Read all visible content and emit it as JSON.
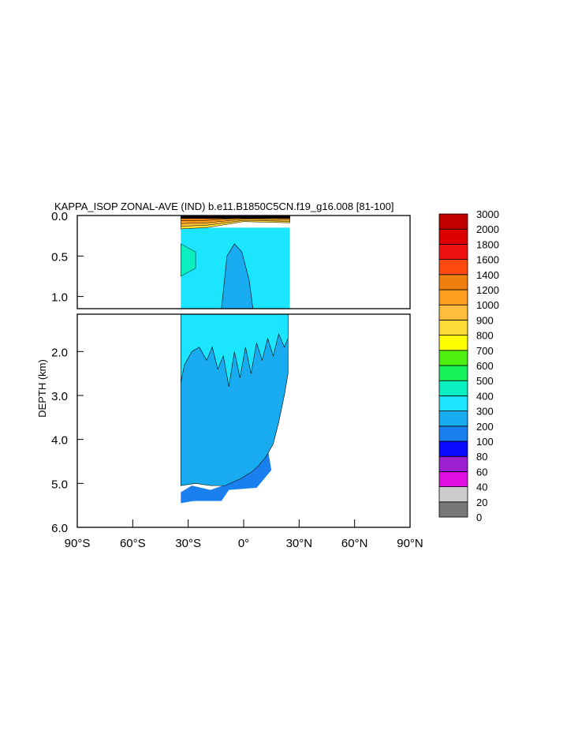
{
  "chart_data": {
    "type": "heatmap",
    "title": "KAPPA_ISOP ZONAL-AVE (IND) b.e11.B1850C5CN.f19_g16.008 [81-100]",
    "ylabel": "DEPTH (km)",
    "xlabel": "",
    "x_ticks": [
      "90°S",
      "60°S",
      "30°S",
      "0°",
      "30°N",
      "60°N",
      "90°N"
    ],
    "x_range_deg": [
      -90,
      90
    ],
    "upper_panel": {
      "ylim_km": [
        0.0,
        1.15
      ],
      "y_ticks": [
        "0.0",
        "0.5",
        "1.0"
      ]
    },
    "lower_panel": {
      "ylim_km": [
        1.15,
        6.0
      ],
      "y_ticks": [
        "2.0",
        "3.0",
        "4.0",
        "5.0",
        "6.0"
      ]
    },
    "colorbar": {
      "levels": [
        "0",
        "20",
        "40",
        "60",
        "80",
        "100",
        "200",
        "300",
        "400",
        "500",
        "600",
        "700",
        "800",
        "900",
        "1000",
        "1200",
        "1400",
        "1600",
        "1800",
        "2000",
        "3000"
      ],
      "colors": [
        "#777777",
        "#cccccc",
        "#e10ee1",
        "#9c1fd2",
        "#0a0aff",
        "#1a80f0",
        "#18abef",
        "#1ce6ff",
        "#0bf0c0",
        "#16f35a",
        "#4ef012",
        "#ffff00",
        "#ffdd38",
        "#ffbd3c",
        "#ff9f22",
        "#ef8010",
        "#ff4a0f",
        "#ef1010",
        "#dd0000",
        "#c30000"
      ]
    },
    "regions": [
      {
        "name": "deep ocean (100-200)",
        "value_range": [
          100,
          200
        ],
        "lat_range": [
          -34,
          20
        ],
        "depth_range_km": [
          4.5,
          5.4
        ]
      },
      {
        "name": "abyssal interior (200-300)",
        "value_range": [
          200,
          300
        ],
        "lat_range": [
          -34,
          23
        ],
        "depth_range_km": [
          1.5,
          5.0
        ]
      },
      {
        "name": "intermediate (300-400)",
        "value_range": [
          300,
          400
        ],
        "lat_range": [
          -34,
          25
        ],
        "depth_range_km": [
          0.15,
          1.6
        ]
      },
      {
        "name": "subtropical south (400-500)",
        "value_range": [
          400,
          500
        ],
        "lat_range": [
          -34,
          -24
        ],
        "depth_range_km": [
          0.4,
          0.6
        ]
      },
      {
        "name": "surface layer (1000-3000)",
        "value_range": [
          1000,
          3000
        ],
        "lat_range": [
          -34,
          25
        ],
        "depth_range_km": [
          0.0,
          0.15
        ]
      }
    ]
  }
}
